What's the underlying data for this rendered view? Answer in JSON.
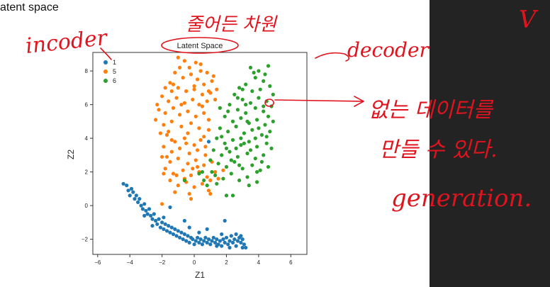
{
  "page": {
    "heading": "atent space"
  },
  "annotations": {
    "encoder": "incoder",
    "decoder": "decoder",
    "reduced_dimension": "줄어든 차원",
    "note_line1": "없는 데이터를",
    "note_line2": "만들 수 있다.",
    "generation": "generation.",
    "panel_mark": "V",
    "ink_color": "#e0141e"
  },
  "chart_data": {
    "type": "scatter",
    "title": "Latent Space",
    "xlabel": "Z1",
    "ylabel": "Z2",
    "xlim": [
      -6.3,
      7.0
    ],
    "ylim": [
      -2.9,
      9.1
    ],
    "xticks": [
      "−6",
      "−4",
      "−2",
      "0",
      "2",
      "4",
      "6"
    ],
    "yticks": [
      "−2",
      "0",
      "2",
      "4",
      "6",
      "8"
    ],
    "legend_position": "top-left",
    "grid": false,
    "series": [
      {
        "name": "1",
        "color": "#1f77b4",
        "points": [
          [
            -4.4,
            1.3
          ],
          [
            -4.2,
            1.2
          ],
          [
            -4.1,
            0.9
          ],
          [
            -3.9,
            1.0
          ],
          [
            -4.0,
            0.6
          ],
          [
            -3.8,
            0.8
          ],
          [
            -3.7,
            0.4
          ],
          [
            -3.6,
            0.6
          ],
          [
            -3.5,
            0.2
          ],
          [
            -3.4,
            0.4
          ],
          [
            -3.3,
            0.0
          ],
          [
            -3.2,
            -0.2
          ],
          [
            -3.1,
            0.1
          ],
          [
            -3.0,
            -0.3
          ],
          [
            -2.9,
            -0.5
          ],
          [
            -2.8,
            -0.2
          ],
          [
            -2.7,
            -0.6
          ],
          [
            -2.6,
            -0.8
          ],
          [
            -2.5,
            -0.5
          ],
          [
            -2.4,
            -0.9
          ],
          [
            -2.3,
            -1.1
          ],
          [
            -2.2,
            -0.8
          ],
          [
            -2.1,
            -1.3
          ],
          [
            -2.0,
            -1.0
          ],
          [
            -1.9,
            -1.4
          ],
          [
            -1.8,
            -1.1
          ],
          [
            -1.7,
            -1.5
          ],
          [
            -1.6,
            -1.2
          ],
          [
            -1.5,
            -1.6
          ],
          [
            -1.4,
            -1.3
          ],
          [
            -1.3,
            -1.7
          ],
          [
            -1.2,
            -1.4
          ],
          [
            -1.1,
            -1.8
          ],
          [
            -1.0,
            -1.5
          ],
          [
            -0.9,
            -1.9
          ],
          [
            -0.8,
            -1.6
          ],
          [
            -0.7,
            -2.0
          ],
          [
            -0.6,
            -1.7
          ],
          [
            -0.5,
            -2.1
          ],
          [
            -0.4,
            -1.8
          ],
          [
            -0.3,
            -2.2
          ],
          [
            -0.2,
            -1.9
          ],
          [
            -0.1,
            -2.0
          ],
          [
            0.0,
            -2.3
          ],
          [
            0.1,
            -2.1
          ],
          [
            0.2,
            -1.9
          ],
          [
            0.3,
            -2.2
          ],
          [
            0.4,
            -2.0
          ],
          [
            0.5,
            -2.3
          ],
          [
            0.6,
            -2.1
          ],
          [
            0.7,
            -1.9
          ],
          [
            0.8,
            -2.2
          ],
          [
            0.9,
            -2.0
          ],
          [
            1.0,
            -2.3
          ],
          [
            1.1,
            -2.1
          ],
          [
            1.2,
            -1.9
          ],
          [
            1.3,
            -2.2
          ],
          [
            1.4,
            -2.0
          ],
          [
            1.5,
            -2.3
          ],
          [
            1.6,
            -2.1
          ],
          [
            1.7,
            -2.4
          ],
          [
            1.8,
            -2.0
          ],
          [
            1.9,
            -2.2
          ],
          [
            2.0,
            -1.9
          ],
          [
            2.1,
            -2.3
          ],
          [
            2.2,
            -2.1
          ],
          [
            2.3,
            -1.8
          ],
          [
            2.4,
            -2.2
          ],
          [
            2.5,
            -2.0
          ],
          [
            2.6,
            -2.4
          ],
          [
            2.7,
            -2.1
          ],
          [
            2.8,
            -1.9
          ],
          [
            2.9,
            -2.2
          ],
          [
            3.0,
            -2.0
          ],
          [
            3.1,
            -2.3
          ],
          [
            3.2,
            -2.5
          ],
          [
            2.6,
            -1.7
          ],
          [
            2.9,
            -1.8
          ],
          [
            3.0,
            -2.5
          ],
          [
            -1.5,
            -0.1
          ],
          [
            -0.6,
            -0.9
          ],
          [
            1.9,
            -0.9
          ],
          [
            -2.6,
            -1.2
          ],
          [
            -3.1,
            -0.6
          ],
          [
            0.8,
            -1.4
          ],
          [
            1.7,
            -1.7
          ],
          [
            0.9,
            3.8
          ],
          [
            -0.3,
            -1.3
          ],
          [
            -1.9,
            -0.7
          ],
          [
            2.2,
            -2.5
          ],
          [
            1.4,
            -2.4
          ],
          [
            0.3,
            -1.6
          ]
        ]
      },
      {
        "name": "5",
        "color": "#ff7f0e",
        "points": [
          [
            -1.0,
            8.8
          ],
          [
            -0.6,
            8.6
          ],
          [
            -0.3,
            8.2
          ],
          [
            0.1,
            8.5
          ],
          [
            0.4,
            8.0
          ],
          [
            0.8,
            7.9
          ],
          [
            1.1,
            7.4
          ],
          [
            0.6,
            7.2
          ],
          [
            0.2,
            7.5
          ],
          [
            -0.2,
            7.8
          ],
          [
            -0.7,
            7.6
          ],
          [
            -1.2,
            7.9
          ],
          [
            -1.5,
            7.3
          ],
          [
            -1.8,
            7.0
          ],
          [
            -1.4,
            6.8
          ],
          [
            -1.0,
            7.0
          ],
          [
            -0.5,
            6.8
          ],
          [
            0.0,
            6.9
          ],
          [
            0.5,
            6.6
          ],
          [
            1.0,
            6.7
          ],
          [
            1.3,
            6.3
          ],
          [
            -2.0,
            6.5
          ],
          [
            -1.6,
            6.2
          ],
          [
            -1.1,
            6.4
          ],
          [
            -0.6,
            6.1
          ],
          [
            -0.1,
            6.3
          ],
          [
            0.3,
            6.0
          ],
          [
            0.8,
            6.2
          ],
          [
            -2.2,
            5.7
          ],
          [
            -1.8,
            5.5
          ],
          [
            -1.3,
            5.8
          ],
          [
            -0.9,
            5.4
          ],
          [
            -0.4,
            5.6
          ],
          [
            0.1,
            5.3
          ],
          [
            0.6,
            5.5
          ],
          [
            -2.4,
            5.1
          ],
          [
            -1.9,
            4.8
          ],
          [
            -1.4,
            5.0
          ],
          [
            -0.8,
            4.7
          ],
          [
            -0.2,
            4.9
          ],
          [
            0.3,
            4.6
          ],
          [
            0.9,
            4.5
          ],
          [
            -1.7,
            4.2
          ],
          [
            -1.2,
            3.8
          ],
          [
            -0.6,
            4.0
          ],
          [
            0.0,
            3.6
          ],
          [
            0.4,
            3.9
          ],
          [
            -1.9,
            3.5
          ],
          [
            -1.4,
            3.2
          ],
          [
            -0.9,
            3.4
          ],
          [
            -0.3,
            3.1
          ],
          [
            0.2,
            3.3
          ],
          [
            0.7,
            3.0
          ],
          [
            -2.0,
            2.9
          ],
          [
            -1.5,
            2.6
          ],
          [
            -1.0,
            2.8
          ],
          [
            -0.4,
            2.5
          ],
          [
            0.1,
            2.7
          ],
          [
            0.6,
            2.4
          ],
          [
            1.1,
            2.6
          ],
          [
            -1.8,
            2.2
          ],
          [
            -1.3,
            1.9
          ],
          [
            -0.7,
            2.1
          ],
          [
            -0.2,
            1.8
          ],
          [
            0.3,
            2.0
          ],
          [
            0.8,
            1.7
          ],
          [
            -1.5,
            1.5
          ],
          [
            -1.0,
            1.2
          ],
          [
            -0.5,
            1.4
          ],
          [
            0.0,
            1.1
          ],
          [
            0.5,
            1.3
          ],
          [
            1.0,
            1.5
          ],
          [
            -1.2,
            0.8
          ],
          [
            -0.3,
            0.7
          ],
          [
            0.9,
            0.9
          ],
          [
            1.5,
            1.6
          ],
          [
            1.8,
            2.1
          ],
          [
            -0.8,
            6.0
          ],
          [
            0.0,
            7.1
          ],
          [
            -1.6,
            4.4
          ],
          [
            -0.5,
            3.7
          ],
          [
            0.6,
            4.1
          ],
          [
            -2.1,
            4.3
          ],
          [
            1.2,
            7.7
          ],
          [
            -0.9,
            8.2
          ],
          [
            0.5,
            5.9
          ],
          [
            -1.1,
            1.8
          ],
          [
            0.2,
            2.3
          ],
          [
            -2.3,
            6.0
          ],
          [
            1.4,
            6.9
          ],
          [
            0.9,
            5.1
          ],
          [
            -1.3,
            7.2
          ],
          [
            -0.4,
            4.3
          ],
          [
            0.4,
            8.4
          ],
          [
            -0.1,
            2.2
          ],
          [
            1.3,
            2.0
          ],
          [
            -1.7,
            2.9
          ],
          [
            0.7,
            3.5
          ],
          [
            -0.6,
            1.6
          ],
          [
            -1.4,
            3.9
          ],
          [
            -1.9,
            1.9
          ],
          [
            -2.0,
            0.1
          ],
          [
            1.0,
            0.7
          ],
          [
            -0.2,
            0.4
          ],
          [
            0.9,
            6.8
          ]
        ]
      },
      {
        "name": "6",
        "color": "#2ca02c",
        "points": [
          [
            3.5,
            8.2
          ],
          [
            4.0,
            8.0
          ],
          [
            4.6,
            8.3
          ],
          [
            3.8,
            7.6
          ],
          [
            4.3,
            7.4
          ],
          [
            3.2,
            7.2
          ],
          [
            2.8,
            7.0
          ],
          [
            3.6,
            6.8
          ],
          [
            4.1,
            6.9
          ],
          [
            4.7,
            7.1
          ],
          [
            2.5,
            6.6
          ],
          [
            3.0,
            6.3
          ],
          [
            3.5,
            6.1
          ],
          [
            4.0,
            6.4
          ],
          [
            4.5,
            6.2
          ],
          [
            2.2,
            6.0
          ],
          [
            2.7,
            5.7
          ],
          [
            3.2,
            5.5
          ],
          [
            3.8,
            5.8
          ],
          [
            4.3,
            5.6
          ],
          [
            4.8,
            5.9
          ],
          [
            1.9,
            5.3
          ],
          [
            2.4,
            5.0
          ],
          [
            2.9,
            5.2
          ],
          [
            3.4,
            4.9
          ],
          [
            3.9,
            5.1
          ],
          [
            4.4,
            4.8
          ],
          [
            4.9,
            5.0
          ],
          [
            1.6,
            4.6
          ],
          [
            2.1,
            4.4
          ],
          [
            2.6,
            4.7
          ],
          [
            3.1,
            4.3
          ],
          [
            3.6,
            4.5
          ],
          [
            4.2,
            4.2
          ],
          [
            4.7,
            4.4
          ],
          [
            1.4,
            4.0
          ],
          [
            1.9,
            3.7
          ],
          [
            2.4,
            3.9
          ],
          [
            2.9,
            3.6
          ],
          [
            3.4,
            3.8
          ],
          [
            3.9,
            3.5
          ],
          [
            4.5,
            3.7
          ],
          [
            1.2,
            3.3
          ],
          [
            1.7,
            3.0
          ],
          [
            2.2,
            3.2
          ],
          [
            2.7,
            2.9
          ],
          [
            3.3,
            3.1
          ],
          [
            3.8,
            2.8
          ],
          [
            4.3,
            3.0
          ],
          [
            1.5,
            2.5
          ],
          [
            2.0,
            2.3
          ],
          [
            2.5,
            2.6
          ],
          [
            3.0,
            2.2
          ],
          [
            3.6,
            2.4
          ],
          [
            4.1,
            2.1
          ],
          [
            4.6,
            2.3
          ],
          [
            1.3,
            1.8
          ],
          [
            1.8,
            1.6
          ],
          [
            2.3,
            1.9
          ],
          [
            2.8,
            1.5
          ],
          [
            3.3,
            1.7
          ],
          [
            3.9,
            1.4
          ],
          [
            0.8,
            1.2
          ],
          [
            1.1,
            2.0
          ],
          [
            0.6,
            1.5
          ],
          [
            1.4,
            1.3
          ],
          [
            2.0,
            0.6
          ],
          [
            2.4,
            0.6
          ],
          [
            3.0,
            6.9
          ],
          [
            3.7,
            7.9
          ],
          [
            4.4,
            7.8
          ],
          [
            2.9,
            4.0
          ],
          [
            3.5,
            3.3
          ],
          [
            4.0,
            4.6
          ],
          [
            2.1,
            5.6
          ],
          [
            4.6,
            5.3
          ],
          [
            2.6,
            3.4
          ],
          [
            3.2,
            6.0
          ],
          [
            4.2,
            2.6
          ],
          [
            1.7,
            4.1
          ],
          [
            3.9,
            2.0
          ],
          [
            2.3,
            2.7
          ],
          [
            3.4,
            1.2
          ],
          [
            4.8,
            3.4
          ],
          [
            1.0,
            2.7
          ],
          [
            0.3,
            1.9
          ],
          [
            -0.6,
            1.5
          ],
          [
            0.5,
            2.0
          ],
          [
            2.7,
            6.4
          ],
          [
            3.8,
            4.0
          ],
          [
            4.3,
            5.9
          ],
          [
            2.0,
            3.4
          ],
          [
            2.8,
            2.4
          ],
          [
            3.1,
            3.7
          ],
          [
            4.5,
            4.1
          ],
          [
            1.6,
            5.8
          ],
          [
            4.9,
            6.6
          ],
          [
            3.3,
            5.0
          ]
        ]
      }
    ]
  }
}
